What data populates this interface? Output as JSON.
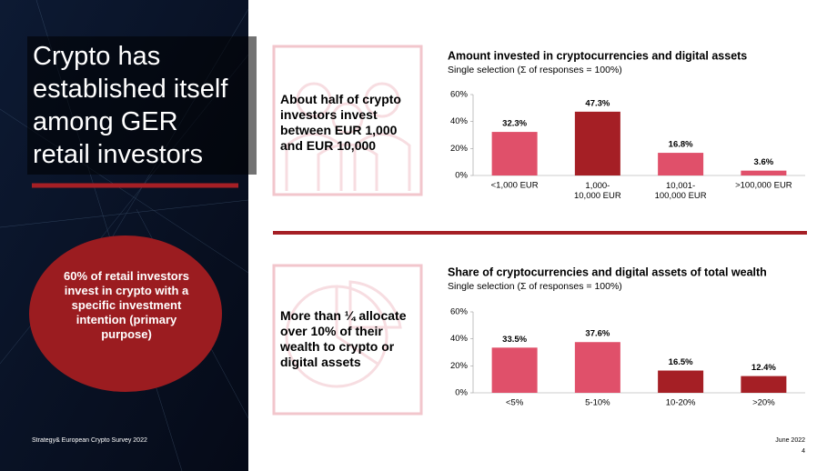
{
  "slide": {
    "title": "Crypto has\nestablished itself\namong GER\nretail investors",
    "callout": "60% of retail investors invest in crypto with a specific investment intention (primary purpose)",
    "source": "Strategy& European Crypto Survey 2022",
    "date": "June 2022",
    "page": "4"
  },
  "panels": [
    {
      "text": "About half of crypto investors invest between EUR 1,000 and EUR 10,000"
    },
    {
      "text": "More than ¼ allocate over 10% of their wealth to crypto or digital assets"
    }
  ],
  "chart_data": [
    {
      "type": "bar",
      "title": "Amount invested in cryptocurrencies and digital assets",
      "subtitle": "Single selection (Σ of responses = 100%)",
      "categories": [
        "<1,000 EUR",
        "1,000-\n10,000 EUR",
        "10,001-\n100,000 EUR",
        ">100,000 EUR"
      ],
      "values": [
        32.3,
        47.3,
        16.8,
        3.6
      ],
      "value_labels": [
        "32.3%",
        "47.3%",
        "16.8%",
        "3.6%"
      ],
      "colors": [
        "#e0506a",
        "#a51f25",
        "#e0506a",
        "#e0506a"
      ],
      "ylim": [
        0,
        60
      ],
      "yticks": [
        {
          "value": 0,
          "label": "0%"
        },
        {
          "value": 20,
          "label": "20%"
        },
        {
          "value": 40,
          "label": "40%"
        },
        {
          "value": 60,
          "label": "60%"
        }
      ]
    },
    {
      "type": "bar",
      "title": "Share of cryptocurrencies and digital assets of total wealth",
      "subtitle": "Single selection (Σ of responses = 100%)",
      "categories": [
        "<5%",
        "5-10%",
        "10-20%",
        ">20%"
      ],
      "values": [
        33.5,
        37.6,
        16.5,
        12.4
      ],
      "value_labels": [
        "33.5%",
        "37.6%",
        "16.5%",
        "12.4%"
      ],
      "colors": [
        "#e0506a",
        "#e0506a",
        "#a51f25",
        "#a51f25"
      ],
      "ylim": [
        0,
        60
      ],
      "yticks": [
        {
          "value": 0,
          "label": "0%"
        },
        {
          "value": 20,
          "label": "20%"
        },
        {
          "value": 40,
          "label": "40%"
        },
        {
          "value": 60,
          "label": "60%"
        }
      ]
    }
  ]
}
